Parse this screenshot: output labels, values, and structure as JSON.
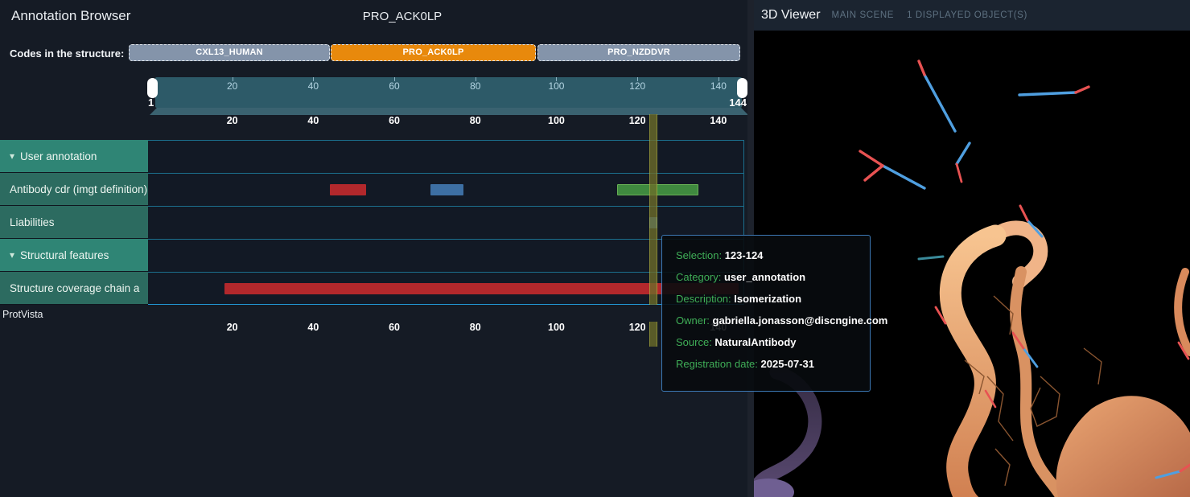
{
  "header": {
    "app_title": "Annotation Browser",
    "structure_title": "PRO_ACK0LP",
    "codes_label": "Codes in the structure:",
    "codes": [
      {
        "label": "CXL13_HUMAN",
        "color": "#8494aa",
        "active": false
      },
      {
        "label": "PRO_ACK0LP",
        "color": "#e8890c",
        "active": true
      },
      {
        "label": "PRO_NZDDVR",
        "color": "#8494aa",
        "active": false
      }
    ]
  },
  "navigation": {
    "start_label": "1",
    "end_label": "144",
    "ticks": [
      "20",
      "40",
      "60",
      "80",
      "100",
      "120",
      "140"
    ]
  },
  "sequence_ruler_ticks": [
    "20",
    "40",
    "60",
    "80",
    "100",
    "120",
    "140"
  ],
  "bottom_ruler_ticks": [
    "20",
    "40",
    "60",
    "80",
    "100",
    "120",
    "140"
  ],
  "tracks": [
    {
      "label": "User annotation",
      "type": "header",
      "collapsible": true
    },
    {
      "label": "Antibody cdr (imgt definition)",
      "type": "sub",
      "collapsible": false
    },
    {
      "label": "Liabilities",
      "type": "sub",
      "collapsible": false
    },
    {
      "label": "Structural features",
      "type": "header",
      "collapsible": true
    },
    {
      "label": "Structure coverage chain a",
      "type": "sub",
      "collapsible": false
    }
  ],
  "protvista_label": "ProtVista",
  "features": [
    {
      "track": 1,
      "name": "cdr-region-1",
      "start": 44,
      "end": 53,
      "color": "#b2282c",
      "border_color": ""
    },
    {
      "track": 1,
      "name": "cdr-region-2",
      "start": 69,
      "end": 77,
      "color": "#3d6fa3",
      "border_color": ""
    },
    {
      "track": 1,
      "name": "cdr-region-3",
      "start": 115,
      "end": 135,
      "color": "#3f8a3f",
      "border_color": "#68b056"
    },
    {
      "track": 2,
      "name": "liability",
      "start": 123,
      "end": 125,
      "color": "#3d78b5",
      "border_color": ""
    },
    {
      "track": 4,
      "name": "coverage",
      "start": 18,
      "end": 145,
      "color": "#b2282c",
      "border_color": ""
    }
  ],
  "selection": {
    "start": 123,
    "end": 124,
    "marker_color": "#6d6d2a",
    "marker_border": "#a8a83c"
  },
  "tooltip": {
    "rows": [
      {
        "label": "Selection: ",
        "value": "123-124"
      },
      {
        "label": "Category: ",
        "value": "user_annotation"
      },
      {
        "label": "Description: ",
        "value": "Isomerization"
      },
      {
        "label": "Owner: ",
        "value": "gabriella.jonasson@discngine.com"
      },
      {
        "label": "Source: ",
        "value": "NaturalAntibody"
      },
      {
        "label": "Registration date: ",
        "value": "2025-07-31"
      }
    ],
    "label_color": "#3fae57",
    "border_color": "#3c78b4"
  },
  "viewer": {
    "title": "3D Viewer",
    "scene_label": "MAIN SCENE",
    "objects_label": "1 DISPLAYED OBJECT(S)"
  },
  "icons": {
    "collapse_arrow": "▾"
  },
  "colors": {
    "accent_orange": "#e8890c",
    "track_header_green": "#2f8575",
    "track_sub_green": "#2c6b60",
    "ruler_teal": "#2d5a68",
    "grid_blue": "#1b6f8d",
    "ribbon_peach": "#eba673",
    "ribbon_purple": "#4a3c5c"
  }
}
